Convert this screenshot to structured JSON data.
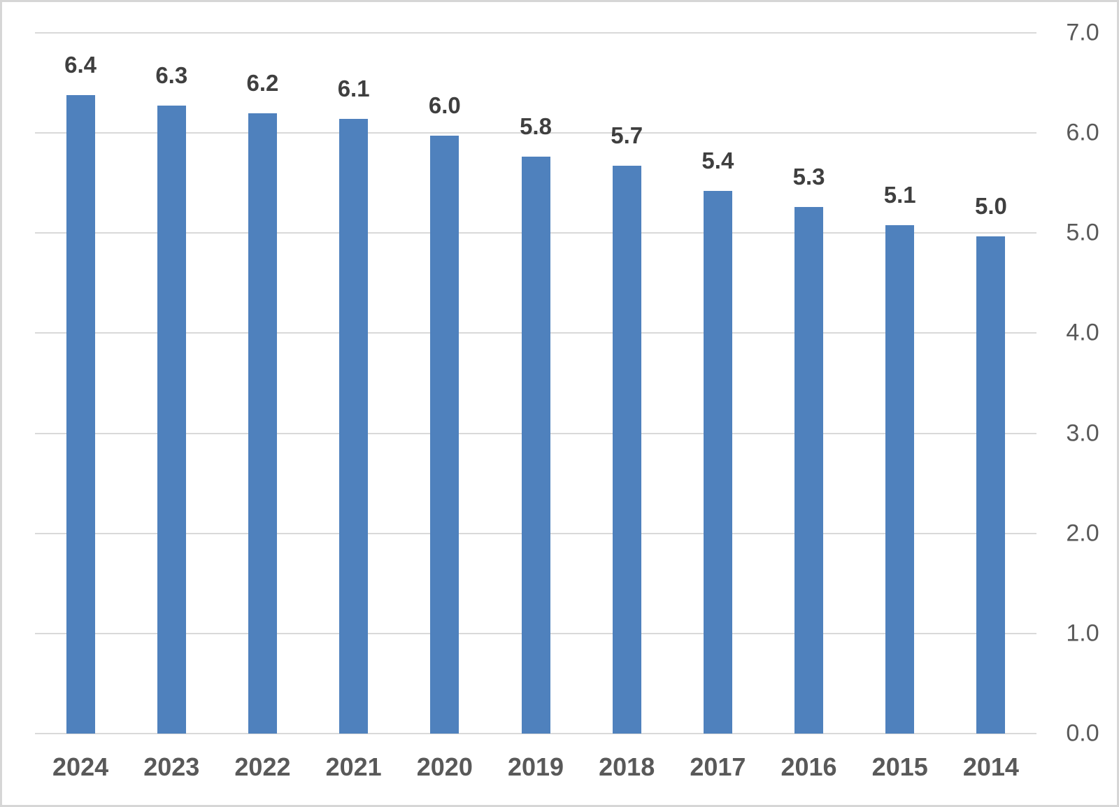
{
  "chart_data": {
    "type": "bar",
    "title": "",
    "xlabel": "",
    "ylabel": "",
    "categories": [
      "2024",
      "2023",
      "2022",
      "2021",
      "2020",
      "2019",
      "2018",
      "2017",
      "2016",
      "2015",
      "2014"
    ],
    "values": [
      6.4,
      6.3,
      6.2,
      6.1,
      6.0,
      5.8,
      5.7,
      5.4,
      5.3,
      5.1,
      5.0
    ],
    "data_labels": [
      "6.4",
      "6.3",
      "6.2",
      "6.1",
      "6.0",
      "5.8",
      "5.7",
      "5.4",
      "5.3",
      "5.1",
      "5.0"
    ],
    "values_precise": [
      6.38,
      6.27,
      6.2,
      6.14,
      5.97,
      5.76,
      5.67,
      5.42,
      5.26,
      5.08,
      4.97
    ],
    "ylim": [
      0,
      7
    ],
    "y_ticks": [
      "7.0",
      "6.0",
      "5.0",
      "4.0",
      "3.0",
      "2.0",
      "1.0",
      "0.0"
    ],
    "y_tick_values": [
      7,
      6,
      5,
      4,
      3,
      2,
      1,
      0
    ],
    "y_axis_position": "right",
    "grid": true,
    "legend": "none",
    "colors": {
      "bar": "#4F81BD",
      "gridline": "#D9D9D9",
      "axis_line": "#D9D9D9",
      "data_label": "#3F3F3F",
      "axis_label": "#595959",
      "background": "#FFFFFF",
      "frame_border": "#D6D6D6"
    }
  }
}
